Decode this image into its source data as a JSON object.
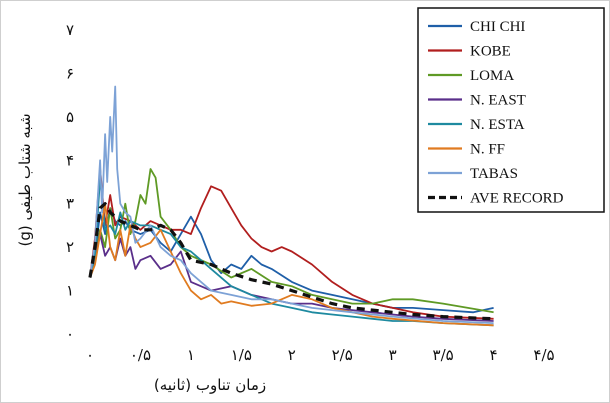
{
  "chart_data": {
    "type": "line",
    "xlabel": "زمان تناوب (ثانیه)",
    "ylabel": "شبه شتاب طیفی (g)",
    "xlim": [
      0,
      4.5
    ],
    "ylim": [
      0,
      7
    ],
    "x_tick_labels": [
      "۰",
      "۰/۵",
      "۱",
      "۱/۵",
      "۲",
      "۲/۵",
      "۳",
      "۳/۵",
      "۴",
      "۴/۵"
    ],
    "y_tick_labels": [
      "۰",
      "۱",
      "۲",
      "۳",
      "۴",
      "۵",
      "۶",
      "۷"
    ],
    "legend_position": "top-right",
    "grid": false,
    "series": [
      {
        "name": "CHI CHI",
        "color": "#1f5fa8",
        "dash": "none",
        "x": [
          0.0,
          0.05,
          0.1,
          0.15,
          0.2,
          0.25,
          0.3,
          0.35,
          0.4,
          0.5,
          0.6,
          0.7,
          0.8,
          0.9,
          1.0,
          1.1,
          1.2,
          1.3,
          1.4,
          1.5,
          1.6,
          1.7,
          1.8,
          2.0,
          2.2,
          2.4,
          2.6,
          2.8,
          3.0,
          3.2,
          3.5,
          3.8,
          4.0
        ],
        "y": [
          1.3,
          1.8,
          2.8,
          2.3,
          2.9,
          2.6,
          2.5,
          2.6,
          2.4,
          2.3,
          2.4,
          2.1,
          1.9,
          2.3,
          2.7,
          2.3,
          1.7,
          1.4,
          1.6,
          1.5,
          1.8,
          1.6,
          1.5,
          1.2,
          1.0,
          0.9,
          0.8,
          0.7,
          0.6,
          0.6,
          0.55,
          0.5,
          0.6
        ]
      },
      {
        "name": "KOBE",
        "color": "#b11e1e",
        "dash": "none",
        "x": [
          0.0,
          0.05,
          0.1,
          0.15,
          0.2,
          0.25,
          0.3,
          0.4,
          0.5,
          0.6,
          0.7,
          0.8,
          0.9,
          1.0,
          1.1,
          1.2,
          1.3,
          1.4,
          1.5,
          1.6,
          1.7,
          1.8,
          1.9,
          2.0,
          2.2,
          2.4,
          2.6,
          2.8,
          3.0,
          3.2,
          3.5,
          4.0
        ],
        "y": [
          1.3,
          2.2,
          3.8,
          2.5,
          3.2,
          2.5,
          2.7,
          2.6,
          2.4,
          2.6,
          2.5,
          2.4,
          2.4,
          2.3,
          2.9,
          3.4,
          3.3,
          2.9,
          2.5,
          2.2,
          2.0,
          1.9,
          2.0,
          1.9,
          1.6,
          1.2,
          0.9,
          0.7,
          0.6,
          0.5,
          0.4,
          0.35
        ]
      },
      {
        "name": "LOMA",
        "color": "#5f9a25",
        "dash": "none",
        "x": [
          0.0,
          0.05,
          0.1,
          0.15,
          0.2,
          0.25,
          0.3,
          0.35,
          0.4,
          0.45,
          0.5,
          0.55,
          0.6,
          0.65,
          0.7,
          0.8,
          0.9,
          1.0,
          1.2,
          1.4,
          1.6,
          1.8,
          2.0,
          2.2,
          2.4,
          2.6,
          2.8,
          3.0,
          3.2,
          3.5,
          4.0
        ],
        "y": [
          1.3,
          1.7,
          2.4,
          2.0,
          2.9,
          2.2,
          2.4,
          3.0,
          2.3,
          2.6,
          3.2,
          3.0,
          3.8,
          3.6,
          2.7,
          2.4,
          2.0,
          1.8,
          1.6,
          1.3,
          1.5,
          1.2,
          1.1,
          0.9,
          0.8,
          0.7,
          0.7,
          0.8,
          0.8,
          0.7,
          0.5
        ]
      },
      {
        "name": "N. EAST",
        "color": "#5a2f8a",
        "dash": "none",
        "x": [
          0.0,
          0.05,
          0.1,
          0.15,
          0.2,
          0.25,
          0.3,
          0.35,
          0.4,
          0.45,
          0.5,
          0.6,
          0.7,
          0.8,
          0.9,
          1.0,
          1.2,
          1.4,
          1.6,
          1.8,
          2.0,
          2.2,
          2.4,
          2.6,
          2.8,
          3.0,
          3.2,
          3.5,
          4.0
        ],
        "y": [
          1.3,
          1.7,
          2.3,
          1.8,
          2.0,
          1.7,
          2.2,
          1.8,
          2.0,
          1.5,
          1.7,
          1.8,
          1.5,
          1.6,
          1.9,
          1.2,
          1.0,
          1.1,
          0.9,
          0.8,
          0.7,
          0.7,
          0.6,
          0.55,
          0.5,
          0.45,
          0.4,
          0.35,
          0.3
        ]
      },
      {
        "name": "N. ESTA",
        "color": "#1e8aa0",
        "dash": "none",
        "x": [
          0.0,
          0.05,
          0.1,
          0.15,
          0.2,
          0.25,
          0.3,
          0.35,
          0.4,
          0.5,
          0.6,
          0.7,
          0.8,
          0.9,
          1.0,
          1.1,
          1.2,
          1.4,
          1.6,
          1.8,
          2.0,
          2.2,
          2.4,
          2.6,
          2.8,
          3.0,
          3.2,
          3.5,
          4.0
        ],
        "y": [
          1.3,
          1.8,
          3.6,
          2.4,
          2.5,
          2.3,
          2.8,
          2.4,
          2.6,
          2.5,
          2.5,
          2.4,
          2.3,
          2.0,
          1.9,
          1.7,
          1.5,
          1.1,
          0.9,
          0.7,
          0.6,
          0.5,
          0.45,
          0.4,
          0.35,
          0.3,
          0.3,
          0.25,
          0.2
        ]
      },
      {
        "name": "N. FF",
        "color": "#e07b20",
        "dash": "none",
        "x": [
          0.0,
          0.05,
          0.1,
          0.15,
          0.2,
          0.25,
          0.3,
          0.35,
          0.4,
          0.45,
          0.5,
          0.6,
          0.7,
          0.8,
          0.9,
          1.0,
          1.1,
          1.2,
          1.3,
          1.4,
          1.6,
          1.8,
          2.0,
          2.2,
          2.4,
          2.6,
          2.8,
          3.0,
          3.5,
          4.0
        ],
        "y": [
          1.3,
          1.6,
          2.3,
          3.0,
          2.0,
          1.7,
          2.4,
          1.8,
          2.5,
          2.2,
          2.0,
          2.1,
          2.4,
          1.9,
          1.4,
          1.0,
          0.8,
          0.9,
          0.7,
          0.75,
          0.65,
          0.7,
          0.9,
          0.8,
          0.6,
          0.5,
          0.4,
          0.35,
          0.25,
          0.2
        ]
      },
      {
        "name": "TABAS",
        "color": "#7da2d6",
        "dash": "none",
        "x": [
          0.0,
          0.05,
          0.1,
          0.12,
          0.15,
          0.17,
          0.2,
          0.22,
          0.25,
          0.27,
          0.3,
          0.35,
          0.4,
          0.45,
          0.5,
          0.6,
          0.7,
          0.8,
          0.9,
          1.0,
          1.1,
          1.2,
          1.4,
          1.6,
          1.8,
          2.0,
          2.2,
          2.4,
          2.6,
          3.0,
          3.5,
          4.0
        ],
        "y": [
          1.3,
          2.1,
          4.0,
          2.8,
          4.6,
          3.5,
          5.0,
          4.2,
          5.7,
          3.8,
          3.0,
          2.8,
          2.7,
          2.1,
          2.2,
          2.5,
          2.0,
          1.8,
          1.7,
          1.4,
          1.2,
          1.0,
          0.9,
          0.8,
          0.8,
          0.7,
          0.6,
          0.55,
          0.5,
          0.4,
          0.3,
          0.25
        ]
      },
      {
        "name": "AVE RECORD",
        "color": "#111111",
        "dash": "8,6",
        "x": [
          0.0,
          0.05,
          0.1,
          0.15,
          0.2,
          0.3,
          0.4,
          0.5,
          0.6,
          0.7,
          0.8,
          0.9,
          1.0,
          1.2,
          1.4,
          1.6,
          1.8,
          2.0,
          2.2,
          2.4,
          2.6,
          2.8,
          3.0,
          3.2,
          3.5,
          4.0
        ],
        "y": [
          1.3,
          2.0,
          2.9,
          3.0,
          2.8,
          2.6,
          2.5,
          2.4,
          2.4,
          2.5,
          2.4,
          2.1,
          1.7,
          1.6,
          1.4,
          1.25,
          1.15,
          1.0,
          0.85,
          0.7,
          0.6,
          0.55,
          0.5,
          0.45,
          0.4,
          0.35
        ]
      }
    ]
  }
}
